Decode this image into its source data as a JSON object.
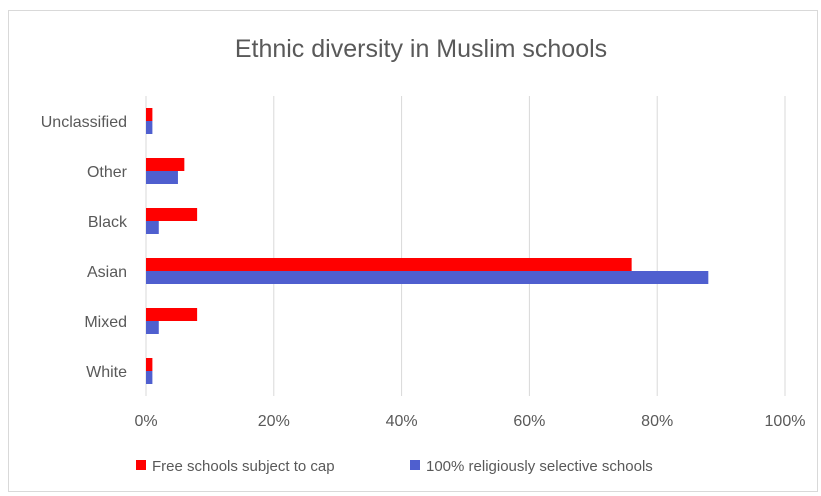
{
  "chart_data": {
    "type": "bar",
    "orientation": "horizontal",
    "title": "Ethnic diversity in Muslim schools",
    "categories": [
      "Unclassified",
      "Other",
      "Black",
      "Asian",
      "Mixed",
      "White"
    ],
    "series": [
      {
        "name": "Free schools subject to cap",
        "color": "#ff0000",
        "values": [
          1,
          6,
          8,
          76,
          8,
          1
        ]
      },
      {
        "name": "100% religiously selective schools",
        "color": "#4f5fcf",
        "values": [
          1,
          5,
          2,
          88,
          2,
          1
        ]
      }
    ],
    "x_ticks": [
      "0%",
      "20%",
      "40%",
      "60%",
      "80%",
      "100%"
    ],
    "xlim": [
      0,
      100
    ],
    "grid": true,
    "legend_position": "bottom"
  }
}
